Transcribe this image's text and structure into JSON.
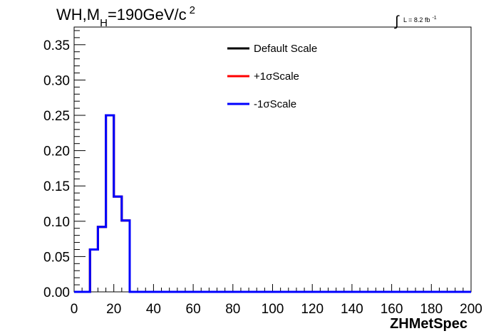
{
  "header": {
    "title_main": "WH,M",
    "title_sub": "H",
    "title_rest": "=190GeV/c",
    "title_sup": "2",
    "lumi_text": "L = 8.2 fb",
    "lumi_sup": "-1"
  },
  "chart_data": {
    "type": "line",
    "style": "step-histogram",
    "xlabel": "ZHMetSpec",
    "ylabel": "",
    "xlim": [
      0,
      200
    ],
    "ylim": [
      0,
      0.375
    ],
    "xticks": [
      0,
      20,
      40,
      60,
      80,
      100,
      120,
      140,
      160,
      180,
      200
    ],
    "xtick_labels": [
      "0",
      "20",
      "40",
      "60",
      "80",
      "100",
      "120",
      "140",
      "160",
      "180",
      "200"
    ],
    "yticks": [
      0,
      0.05,
      0.1,
      0.15,
      0.2,
      0.25,
      0.3,
      0.35
    ],
    "ytick_labels": [
      "0.00",
      "0.05",
      "0.10",
      "0.15",
      "0.20",
      "0.25",
      "0.30",
      "0.35"
    ],
    "bin_edges": [
      0,
      4,
      8,
      12,
      16,
      20,
      24,
      28,
      32,
      36,
      40,
      44,
      48,
      52,
      56,
      60,
      64,
      68,
      72,
      76,
      80,
      84,
      88,
      92,
      96,
      100,
      104,
      108,
      112,
      116,
      120,
      124,
      128,
      132,
      136,
      140,
      144,
      148,
      152,
      156,
      160,
      164,
      168,
      172,
      176,
      180,
      184,
      188,
      192,
      196,
      200
    ],
    "series": [
      {
        "name": "Default Scale",
        "color": "#000000",
        "values": [
          0,
          0,
          0.06,
          0.092,
          0.25,
          0.135,
          0.101,
          0,
          0,
          0,
          0,
          0,
          0,
          0,
          0,
          0,
          0,
          0,
          0,
          0,
          0,
          0,
          0,
          0,
          0,
          0,
          0,
          0,
          0,
          0,
          0,
          0,
          0,
          0,
          0,
          0,
          0,
          0,
          0,
          0,
          0,
          0,
          0,
          0,
          0,
          0,
          0,
          0,
          0,
          0
        ]
      },
      {
        "name": "+1σScale",
        "color": "#ff0000",
        "values": [
          0,
          0,
          0.06,
          0.092,
          0.25,
          0.135,
          0.101,
          0,
          0,
          0,
          0,
          0,
          0,
          0,
          0,
          0,
          0,
          0,
          0,
          0,
          0,
          0,
          0,
          0,
          0,
          0,
          0,
          0,
          0,
          0,
          0,
          0,
          0,
          0,
          0,
          0,
          0,
          0,
          0,
          0,
          0,
          0,
          0,
          0,
          0,
          0,
          0,
          0,
          0,
          0
        ]
      },
      {
        "name": "-1σScale",
        "color": "#0000ff",
        "values": [
          0,
          0,
          0.06,
          0.092,
          0.25,
          0.135,
          0.101,
          0,
          0,
          0,
          0,
          0,
          0,
          0,
          0,
          0,
          0,
          0,
          0,
          0,
          0,
          0,
          0,
          0,
          0,
          0,
          0,
          0,
          0,
          0,
          0,
          0,
          0,
          0,
          0,
          0,
          0,
          0,
          0,
          0,
          0,
          0,
          0,
          0,
          0,
          0,
          0,
          0,
          0,
          0
        ]
      }
    ],
    "legend_position": "top-center",
    "grid": false
  }
}
